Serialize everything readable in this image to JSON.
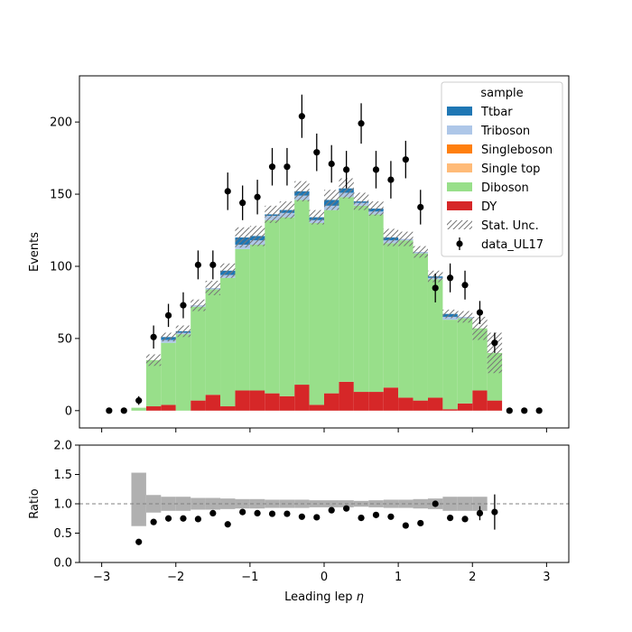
{
  "chart_data": [
    {
      "type": "bar",
      "stacked": true,
      "ylabel": "Events",
      "xlim": [
        -3.3,
        3.3
      ],
      "ylim": [
        -12,
        232
      ],
      "xticks": [
        -3,
        -2,
        -1,
        0,
        1,
        2,
        3
      ],
      "yticks": [
        0,
        50,
        100,
        150,
        200
      ],
      "legend": {
        "title": "sample",
        "placement": "top-right",
        "entries": [
          "Ttbar",
          "Triboson",
          "Singleboson",
          "Single top",
          "Diboson",
          "DY",
          "Stat. Unc.",
          "data_UL17"
        ]
      },
      "bin_edges": [
        -2.6,
        -2.4,
        -2.2,
        -2.0,
        -1.8,
        -1.6,
        -1.4,
        -1.2,
        -1.0,
        -0.8,
        -0.6,
        -0.4,
        -0.2,
        0.0,
        0.2,
        0.4,
        0.6,
        0.8,
        1.0,
        1.2,
        1.4,
        1.6,
        1.8,
        2.0,
        2.2,
        2.4
      ],
      "series": [
        {
          "name": "DY",
          "color": "#d62728",
          "values": [
            0,
            3,
            4,
            0,
            7,
            11,
            3,
            14,
            14,
            12,
            10,
            18,
            4,
            12,
            20,
            13,
            13,
            16,
            9,
            7,
            9,
            1,
            5,
            14,
            7
          ]
        },
        {
          "name": "Diboson",
          "color": "#98df8a",
          "values": [
            2,
            32,
            43,
            53,
            65,
            73,
            89,
            98,
            101,
            120,
            124,
            128,
            126,
            127,
            128,
            129,
            123,
            100,
            109,
            102,
            82,
            62,
            59,
            43,
            33
          ]
        },
        {
          "name": "Single top",
          "color": "#ffbb78",
          "values": [
            0,
            0,
            0,
            0,
            0,
            0,
            0,
            0,
            0,
            0,
            0,
            0,
            0,
            0,
            0,
            0,
            0,
            0,
            0,
            0,
            0,
            0,
            0,
            0,
            0
          ]
        },
        {
          "name": "Singleboson",
          "color": "#ff7f0e",
          "values": [
            0,
            0,
            0,
            0,
            0,
            0,
            0,
            0,
            0,
            0,
            0,
            0,
            0,
            0,
            0,
            0,
            0,
            0,
            0,
            0,
            0,
            0,
            0,
            0,
            0
          ]
        },
        {
          "name": "Triboson",
          "color": "#aec7e8",
          "values": [
            0,
            0,
            2,
            1,
            1,
            1,
            2,
            3,
            3,
            3,
            3,
            3,
            2,
            3,
            3,
            2,
            2,
            2,
            1,
            1,
            1,
            2,
            1,
            0,
            0
          ]
        },
        {
          "name": "Ttbar",
          "color": "#1f77b4",
          "values": [
            0,
            0,
            2,
            1,
            0,
            0,
            3,
            5,
            3,
            1,
            2,
            3,
            2,
            4,
            3,
            1,
            2,
            2,
            0,
            0,
            1,
            2,
            0,
            0,
            0
          ]
        }
      ],
      "stat_unc": [
        0,
        4,
        3,
        4,
        4,
        5,
        5,
        7,
        7,
        6,
        6,
        7,
        5,
        7,
        7,
        6,
        5,
        6,
        5,
        4,
        4,
        3,
        4,
        8,
        14
      ],
      "data": {
        "name": "data_UL17",
        "x": [
          -2.9,
          -2.7,
          -2.5,
          -2.3,
          -2.1,
          -1.9,
          -1.7,
          -1.5,
          -1.3,
          -1.1,
          -0.9,
          -0.7,
          -0.5,
          -0.3,
          -0.1,
          0.1,
          0.3,
          0.5,
          0.7,
          0.9,
          1.1,
          1.3,
          1.5,
          1.7,
          1.9,
          2.1,
          2.3,
          2.5,
          2.7,
          2.9
        ],
        "y": [
          0,
          0,
          7,
          51,
          66,
          73,
          101,
          101,
          152,
          144,
          148,
          169,
          169,
          204,
          179,
          171,
          167,
          199,
          167,
          160,
          174,
          141,
          85,
          92,
          87,
          68,
          47,
          0,
          0,
          0
        ],
        "yerr": [
          0,
          0,
          3,
          8,
          8,
          9,
          10,
          10,
          13,
          12,
          12,
          13,
          13,
          15,
          13,
          13,
          13,
          14,
          13,
          13,
          13,
          12,
          10,
          10,
          10,
          8,
          7,
          0,
          0,
          0
        ]
      }
    },
    {
      "type": "scatter",
      "ylabel": "Ratio",
      "xlabel": "Leading lep $\\eta$",
      "xlim": [
        -3.3,
        3.3
      ],
      "ylim": [
        0.0,
        2.0
      ],
      "xticks": [
        -3,
        -2,
        -1,
        0,
        1,
        2,
        3
      ],
      "yticks": [
        0.0,
        0.5,
        1.0,
        1.5,
        2.0
      ],
      "reference_line": 1.0,
      "unc_band": {
        "bin_edges": [
          -2.6,
          -2.4,
          -2.2,
          -2.0,
          -1.8,
          -1.6,
          -1.4,
          -1.2,
          -1.0,
          -0.8,
          -0.6,
          -0.4,
          -0.2,
          0.0,
          0.2,
          0.4,
          0.6,
          0.8,
          1.0,
          1.2,
          1.4,
          1.6,
          1.8,
          2.0,
          2.2
        ],
        "lo": [
          0.62,
          0.85,
          0.88,
          0.88,
          0.9,
          0.9,
          0.91,
          0.92,
          0.92,
          0.93,
          0.93,
          0.93,
          0.94,
          0.94,
          0.94,
          0.95,
          0.94,
          0.93,
          0.93,
          0.92,
          0.91,
          0.88,
          0.88,
          0.88
        ],
        "hi": [
          1.53,
          1.15,
          1.12,
          1.12,
          1.1,
          1.1,
          1.09,
          1.08,
          1.08,
          1.07,
          1.07,
          1.07,
          1.06,
          1.06,
          1.06,
          1.05,
          1.06,
          1.07,
          1.07,
          1.08,
          1.09,
          1.12,
          1.12,
          1.12
        ]
      },
      "points": {
        "x": [
          -2.5,
          -2.3,
          -2.1,
          -1.9,
          -1.7,
          -1.5,
          -1.3,
          -1.1,
          -0.9,
          -0.7,
          -0.5,
          -0.3,
          -0.1,
          0.1,
          0.3,
          0.5,
          0.7,
          0.9,
          1.1,
          1.3,
          1.5,
          1.7,
          1.9,
          2.1,
          2.3
        ],
        "y": [
          0.35,
          0.69,
          0.75,
          0.75,
          0.74,
          0.84,
          0.65,
          0.86,
          0.84,
          0.83,
          0.83,
          0.78,
          0.77,
          0.89,
          0.92,
          0.76,
          0.81,
          0.78,
          0.63,
          0.67,
          1.0,
          0.76,
          0.74,
          0.84,
          0.86
        ],
        "yerr": [
          0,
          0,
          0.05,
          0.05,
          0,
          0,
          0,
          0,
          0,
          0,
          0,
          0,
          0,
          0,
          0,
          0,
          0,
          0,
          0,
          0,
          0,
          0,
          0,
          0.12,
          0.3
        ]
      }
    }
  ]
}
